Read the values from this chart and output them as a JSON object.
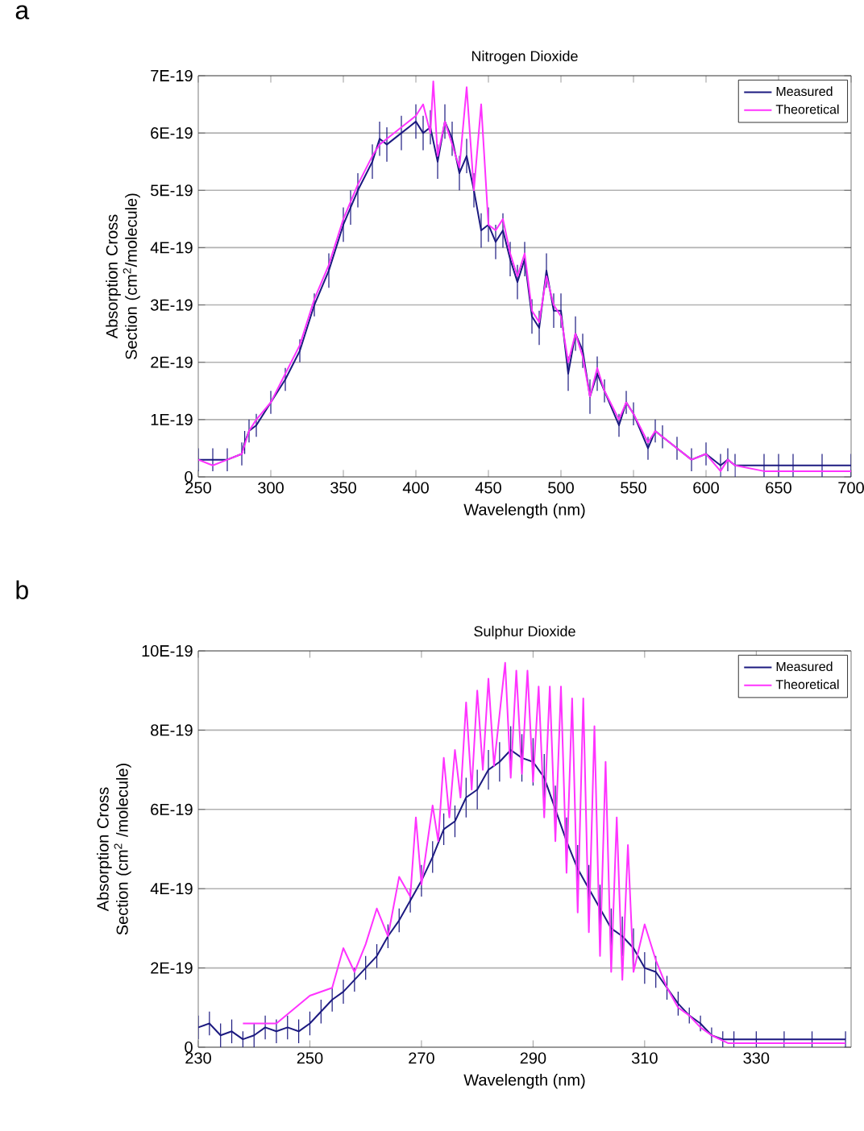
{
  "chart_data": [
    {
      "type": "line",
      "title": "Nitrogen Dioxide",
      "xlabel": "Wavelength (nm)",
      "ylabel": "Absorption Cross Section (cm$^{2}$/molecule)",
      "annotations": [
        "a"
      ],
      "xlim": [
        250,
        700
      ],
      "xticks": [
        250,
        300,
        350,
        400,
        450,
        500,
        550,
        600,
        650,
        700
      ],
      "ylim": [
        0,
        7e-19
      ],
      "yticks": [
        0,
        {
          "value": 1e-19,
          "label": "1E-19"
        },
        {
          "value": 2e-19,
          "label": "2E-19"
        },
        {
          "value": 3e-19,
          "label": "3E-19"
        },
        {
          "value": 4e-19,
          "label": "4E-19"
        },
        {
          "value": 5e-19,
          "label": "5E-19"
        },
        {
          "value": 6e-19,
          "label": "6E-19"
        },
        {
          "value": 7e-19,
          "label": "7E-19"
        }
      ],
      "grid": "y",
      "legend": "top right",
      "series": [
        {
          "name": "Measured",
          "color": "#1c1a80",
          "x": [
            250,
            260,
            270,
            280,
            282,
            285,
            290,
            300,
            310,
            320,
            330,
            340,
            350,
            355,
            360,
            370,
            375,
            380,
            390,
            400,
            405,
            410,
            415,
            420,
            425,
            430,
            435,
            440,
            445,
            450,
            455,
            460,
            465,
            470,
            475,
            480,
            485,
            490,
            495,
            500,
            505,
            510,
            515,
            520,
            525,
            530,
            540,
            545,
            550,
            560,
            565,
            570,
            580,
            590,
            600,
            610,
            615,
            620,
            640,
            650,
            660,
            680,
            700
          ],
          "values": [
            3e-20,
            3e-20,
            3e-20,
            4e-20,
            6e-20,
            8e-20,
            9e-20,
            1.3e-19,
            1.7e-19,
            2.2e-19,
            3e-19,
            3.6e-19,
            4.4e-19,
            4.7e-19,
            5e-19,
            5.5e-19,
            5.9e-19,
            5.8e-19,
            6e-19,
            6.2e-19,
            6e-19,
            6.1e-19,
            5.5e-19,
            6.2e-19,
            5.9e-19,
            5.3e-19,
            5.6e-19,
            5e-19,
            4.3e-19,
            4.4e-19,
            4.1e-19,
            4.3e-19,
            3.8e-19,
            3.4e-19,
            3.8e-19,
            2.8e-19,
            2.6e-19,
            3.6e-19,
            2.9e-19,
            2.9e-19,
            1.8e-19,
            2.5e-19,
            2.2e-19,
            1.4e-19,
            1.8e-19,
            1.5e-19,
            9e-20,
            1.3e-19,
            1.1e-19,
            5e-20,
            8e-20,
            7e-20,
            5e-20,
            3e-20,
            4e-20,
            2e-20,
            3e-20,
            2e-20,
            2e-20,
            2e-20,
            2e-20,
            2e-20,
            2e-20
          ],
          "errors": [
            2e-20,
            2e-20,
            2e-20,
            2e-20,
            2e-20,
            2e-20,
            2e-20,
            2e-20,
            2e-20,
            2e-20,
            2e-20,
            3e-20,
            3e-20,
            3e-20,
            3e-20,
            3e-20,
            3e-20,
            3e-20,
            3e-20,
            3e-20,
            3e-20,
            3e-20,
            3e-20,
            3e-20,
            3e-20,
            3e-20,
            3e-20,
            3e-20,
            3e-20,
            3e-20,
            3e-20,
            3e-20,
            3e-20,
            3e-20,
            3e-20,
            3e-20,
            3e-20,
            3e-20,
            3e-20,
            3e-20,
            3e-20,
            3e-20,
            3e-20,
            3e-20,
            3e-20,
            2e-20,
            2e-20,
            2e-20,
            2e-20,
            2e-20,
            2e-20,
            2e-20,
            2e-20,
            2e-20,
            2e-20,
            2e-20,
            2e-20,
            2e-20,
            2e-20,
            2e-20,
            2e-20,
            2e-20,
            2e-20
          ]
        },
        {
          "name": "Theoretical",
          "color": "#ff33ff",
          "x": [
            250,
            260,
            270,
            280,
            285,
            290,
            300,
            310,
            320,
            330,
            340,
            350,
            355,
            360,
            370,
            375,
            380,
            390,
            400,
            405,
            410,
            412,
            415,
            420,
            425,
            430,
            435,
            440,
            445,
            450,
            455,
            460,
            465,
            470,
            475,
            480,
            485,
            490,
            495,
            500,
            505,
            510,
            515,
            520,
            525,
            530,
            540,
            545,
            550,
            560,
            565,
            570,
            580,
            590,
            600,
            610,
            615,
            620,
            640,
            650,
            660,
            680,
            700
          ],
          "values": [
            3e-20,
            2e-20,
            3e-20,
            4e-20,
            8e-20,
            1e-19,
            1.3e-19,
            1.8e-19,
            2.3e-19,
            3.1e-19,
            3.7e-19,
            4.5e-19,
            4.8e-19,
            5.1e-19,
            5.6e-19,
            5.8e-19,
            5.9e-19,
            6.1e-19,
            6.3e-19,
            6.5e-19,
            6e-19,
            6.9e-19,
            5.6e-19,
            6.2e-19,
            5.8e-19,
            5.4e-19,
            6.8e-19,
            5e-19,
            6.5e-19,
            4.4e-19,
            4.3e-19,
            4.5e-19,
            3.9e-19,
            3.5e-19,
            3.9e-19,
            2.9e-19,
            2.7e-19,
            3.5e-19,
            3e-19,
            2.8e-19,
            2e-19,
            2.5e-19,
            2.1e-19,
            1.4e-19,
            1.9e-19,
            1.5e-19,
            1e-19,
            1.3e-19,
            1.1e-19,
            6e-20,
            8e-20,
            7e-20,
            5e-20,
            3e-20,
            4e-20,
            1e-20,
            3e-20,
            2e-20,
            1e-20,
            1e-20,
            1e-20,
            1e-20,
            1e-20
          ]
        }
      ]
    },
    {
      "type": "line",
      "title": "Sulphur Dioxide",
      "xlabel": "Wavelength (nm)",
      "ylabel": "Absorption Cross Section (cm$^{2}$ /molecule)",
      "annotations": [
        "b"
      ],
      "xlim": [
        230,
        347
      ],
      "xticks": [
        230,
        250,
        270,
        290,
        310,
        330
      ],
      "ylim": [
        0,
        1e-18
      ],
      "yticks": [
        0,
        {
          "value": 2e-19,
          "label": "2E-19"
        },
        {
          "value": 4e-19,
          "label": "4E-19"
        },
        {
          "value": 6e-19,
          "label": "6E-19"
        },
        {
          "value": 8e-19,
          "label": "8E-19"
        },
        {
          "value": 1e-18,
          "label": "10E-19"
        }
      ],
      "grid": "y",
      "legend": "top right",
      "series": [
        {
          "name": "Measured",
          "color": "#1c1a80",
          "x": [
            230,
            232,
            234,
            236,
            238,
            240,
            242,
            244,
            246,
            248,
            250,
            252,
            254,
            256,
            258,
            260,
            262,
            264,
            266,
            268,
            270,
            272,
            274,
            276,
            278,
            280,
            282,
            284,
            286,
            288,
            290,
            292,
            294,
            296,
            298,
            300,
            302,
            304,
            306,
            308,
            310,
            312,
            314,
            316,
            318,
            320,
            322,
            324,
            326,
            330,
            335,
            340,
            346
          ],
          "values": [
            5e-20,
            6e-20,
            3e-20,
            4e-20,
            2e-20,
            3e-20,
            5e-20,
            4e-20,
            5e-20,
            4e-20,
            6e-20,
            9e-20,
            1.2e-19,
            1.4e-19,
            1.7e-19,
            2e-19,
            2.3e-19,
            2.8e-19,
            3.2e-19,
            3.7e-19,
            4.2e-19,
            4.8e-19,
            5.5e-19,
            5.7e-19,
            6.3e-19,
            6.5e-19,
            7e-19,
            7.2e-19,
            7.5e-19,
            7.3e-19,
            7.2e-19,
            6.8e-19,
            6e-19,
            5.2e-19,
            4.5e-19,
            4e-19,
            3.5e-19,
            3e-19,
            2.8e-19,
            2.5e-19,
            2e-19,
            1.9e-19,
            1.5e-19,
            1.1e-19,
            8e-20,
            6e-20,
            3e-20,
            2e-20,
            2e-20,
            2e-20,
            2e-20,
            2e-20,
            2e-20
          ],
          "errors": [
            3e-20,
            3e-20,
            3e-20,
            3e-20,
            2e-20,
            3e-20,
            3e-20,
            3e-20,
            3e-20,
            3e-20,
            3e-20,
            3e-20,
            3e-20,
            3e-20,
            3e-20,
            3e-20,
            3e-20,
            3e-20,
            3e-20,
            3e-20,
            4e-20,
            4e-20,
            4e-20,
            4e-20,
            5e-20,
            5e-20,
            5e-20,
            5e-20,
            6e-20,
            6e-20,
            6e-20,
            6e-20,
            6e-20,
            6e-20,
            6e-20,
            6e-20,
            6e-20,
            5e-20,
            5e-20,
            5e-20,
            4e-20,
            4e-20,
            3e-20,
            3e-20,
            2e-20,
            2e-20,
            2e-20,
            2e-20,
            2e-20,
            2e-20,
            2e-20,
            2e-20,
            2e-20
          ]
        },
        {
          "name": "Theoretical",
          "color": "#ff33ff",
          "x": [
            238,
            244,
            250,
            254,
            256,
            258,
            260,
            262,
            264,
            266,
            268,
            269,
            270,
            272,
            273,
            274,
            275,
            276,
            277,
            278,
            279,
            280,
            281,
            282,
            283,
            285,
            286,
            287,
            288,
            289,
            290,
            291,
            292,
            293,
            294,
            295,
            296,
            297,
            298,
            299,
            300,
            301,
            302,
            303,
            304,
            305,
            306,
            307,
            308,
            310,
            312,
            314,
            316,
            318,
            320,
            322,
            325,
            330,
            340,
            346
          ],
          "values": [
            6e-20,
            6e-20,
            1.3e-19,
            1.5e-19,
            2.5e-19,
            1.9e-19,
            2.6e-19,
            3.5e-19,
            2.8e-19,
            4.3e-19,
            3.8e-19,
            5.8e-19,
            4.1e-19,
            6.1e-19,
            5.2e-19,
            7.3e-19,
            5.8e-19,
            7.5e-19,
            6.3e-19,
            8.7e-19,
            6.5e-19,
            9e-19,
            7e-19,
            9.3e-19,
            7.1e-19,
            9.7e-19,
            6.8e-19,
            9.5e-19,
            6.9e-19,
            9.5e-19,
            6.7e-19,
            9.1e-19,
            5.8e-19,
            9.1e-19,
            5.2e-19,
            9.1e-19,
            4.4e-19,
            8.8e-19,
            3.4e-19,
            8.8e-19,
            2.9e-19,
            8.1e-19,
            2.3e-19,
            7.2e-19,
            1.9e-19,
            5.8e-19,
            1.7e-19,
            5.1e-19,
            1.9e-19,
            3.1e-19,
            2.2e-19,
            1.5e-19,
            1e-19,
            8e-20,
            5e-20,
            3e-20,
            1e-20,
            1e-20,
            1e-20,
            1e-20
          ]
        }
      ]
    }
  ]
}
